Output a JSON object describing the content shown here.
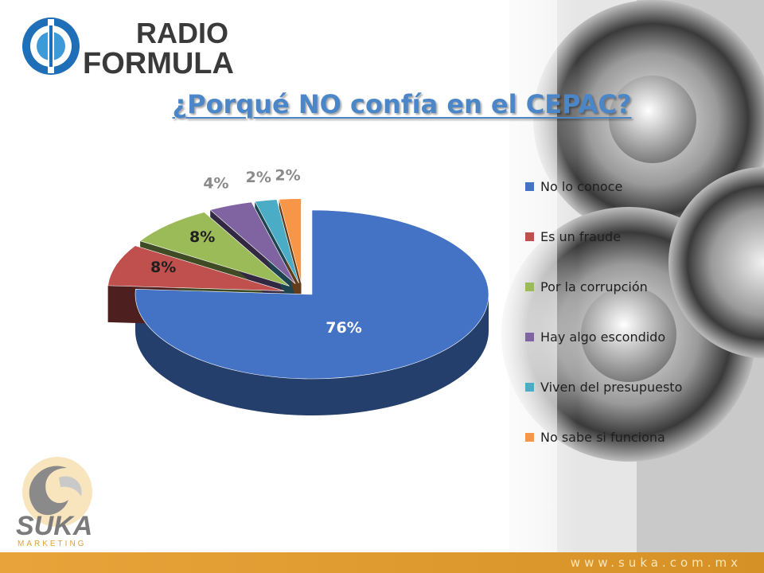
{
  "header": {
    "logo_line1": "RADIO",
    "logo_line2": "FORMULA"
  },
  "chart_data": {
    "type": "pie",
    "title": "¿Porqué NO confía en el CEPAC?",
    "categories": [
      "No lo conoce",
      "Es un fraude",
      "Por la corrupción",
      "Hay algo escondido",
      "Viven del presupuesto",
      "No sabe si funciona"
    ],
    "values": [
      76,
      8,
      8,
      4,
      2,
      2
    ],
    "value_labels": [
      "76%",
      "8%",
      "8%",
      "4%",
      "2%",
      "2%"
    ],
    "colors": [
      "#4472c4",
      "#c0504d",
      "#9bbb59",
      "#8064a2",
      "#4bacc6",
      "#f79646"
    ],
    "legend_position": "right",
    "style": "3d-exploded"
  },
  "footer": {
    "logo_main": "SUKA",
    "logo_sub": "MARKETING",
    "url": "www.suka.com.mx"
  }
}
